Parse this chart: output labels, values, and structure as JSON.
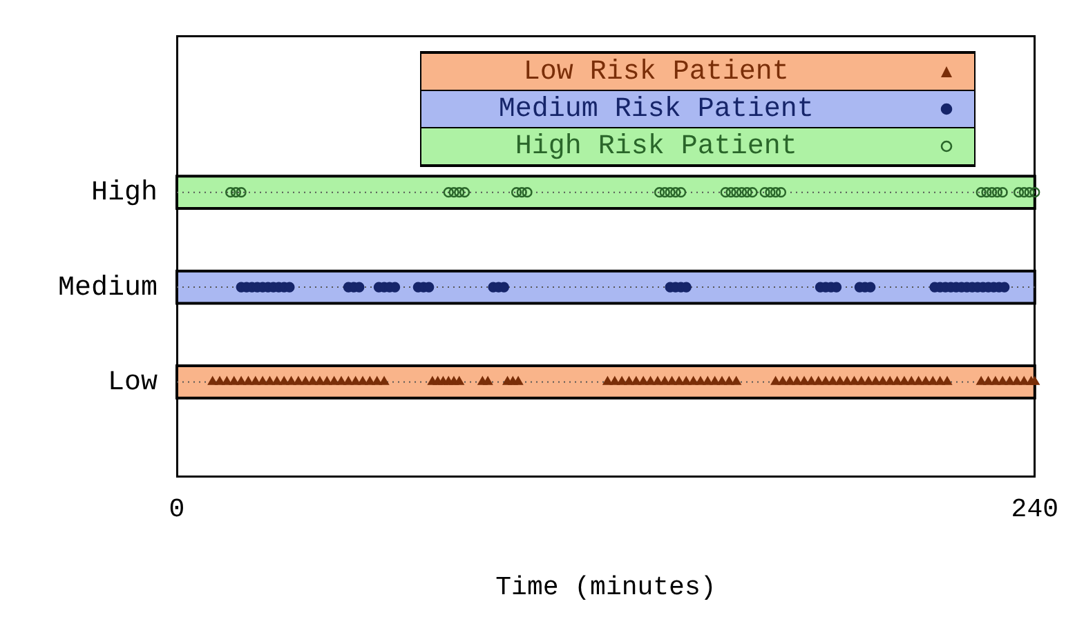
{
  "chart_data": {
    "type": "scatter",
    "orientation": "horizontal",
    "xlabel": "Time (minutes)",
    "xlim": [
      0,
      240
    ],
    "xticks": [
      0,
      240
    ],
    "categories": [
      "High",
      "Medium",
      "Low"
    ],
    "grid": "y",
    "line_style": "dotted",
    "legend": "top",
    "bands": [
      {
        "axis": "y",
        "from": "Low",
        "to": "Low",
        "color": "#f9b48a"
      },
      {
        "axis": "y",
        "from": "Medium",
        "to": "Medium",
        "color": "#aab8f2"
      },
      {
        "axis": "y",
        "from": "High",
        "to": "High",
        "color": "#aef2a4"
      }
    ],
    "series": [
      {
        "name": "Low Risk Patient",
        "color": "#7a2e08",
        "marker": "triangle",
        "values": [
          10,
          12,
          14,
          16,
          18,
          20,
          22,
          24,
          26,
          28,
          30,
          32,
          34,
          36,
          38,
          40,
          42,
          44,
          46,
          48,
          50,
          52,
          54,
          56,
          58,
          71.5,
          73,
          74.5,
          76,
          77.5,
          79,
          85.5,
          87,
          92.5,
          94,
          95.5,
          120.5,
          122.5,
          124.5,
          126.5,
          128.5,
          130.5,
          132.5,
          134.5,
          136.5,
          138.5,
          140.5,
          142.5,
          144.5,
          146.5,
          148.5,
          150.5,
          152.5,
          154.5,
          156.5,
          167.5,
          169.5,
          171.5,
          173.5,
          175.5,
          177.5,
          179.5,
          181.5,
          183.5,
          185.5,
          187.5,
          189.5,
          191.5,
          193.5,
          195.5,
          197.5,
          199.5,
          201.5,
          203.5,
          205.5,
          207.5,
          209.5,
          211.5,
          213.5,
          215.5,
          225,
          227,
          229,
          231,
          233,
          235,
          237,
          239,
          240
        ],
        "x": [
          "Low",
          "Low",
          "Low",
          "Low",
          "Low",
          "Low",
          "Low",
          "Low",
          "Low",
          "Low",
          "Low",
          "Low",
          "Low",
          "Low",
          "Low",
          "Low",
          "Low",
          "Low",
          "Low",
          "Low",
          "Low",
          "Low",
          "Low",
          "Low",
          "Low",
          "Low",
          "Low",
          "Low",
          "Low",
          "Low",
          "Low",
          "Low",
          "Low",
          "Low",
          "Low",
          "Low",
          "Low",
          "Low",
          "Low",
          "Low",
          "Low",
          "Low",
          "Low",
          "Low",
          "Low",
          "Low",
          "Low",
          "Low",
          "Low",
          "Low",
          "Low",
          "Low",
          "Low",
          "Low",
          "Low",
          "Low",
          "Low",
          "Low",
          "Low",
          "Low",
          "Low",
          "Low",
          "Low",
          "Low",
          "Low",
          "Low",
          "Low",
          "Low",
          "Low",
          "Low",
          "Low",
          "Low",
          "Low",
          "Low",
          "Low",
          "Low",
          "Low",
          "Low",
          "Low",
          "Low",
          "Low",
          "Low",
          "Low",
          "Low",
          "Low",
          "Low",
          "Low",
          "Low",
          "Low"
        ]
      },
      {
        "name": "Medium Risk Patient",
        "color": "#16256a",
        "marker": "circle",
        "values": [
          18,
          19.5,
          21,
          22.5,
          24,
          25.5,
          27,
          28.5,
          30,
          31.5,
          48,
          49.5,
          51,
          56.5,
          58,
          59.5,
          61,
          67.5,
          69,
          70.5,
          88.5,
          90,
          91.5,
          138,
          139.5,
          141,
          142.5,
          180,
          181.5,
          183,
          184.5,
          191,
          192.5,
          194,
          212,
          213.5,
          215,
          216.5,
          218,
          219.5,
          221,
          222.5,
          224,
          225.5,
          227,
          228.5,
          230,
          231.5
        ],
        "x": [
          "Medium",
          "Medium",
          "Medium",
          "Medium",
          "Medium",
          "Medium",
          "Medium",
          "Medium",
          "Medium",
          "Medium",
          "Medium",
          "Medium",
          "Medium",
          "Medium",
          "Medium",
          "Medium",
          "Medium",
          "Medium",
          "Medium",
          "Medium",
          "Medium",
          "Medium",
          "Medium",
          "Medium",
          "Medium",
          "Medium",
          "Medium",
          "Medium",
          "Medium",
          "Medium",
          "Medium",
          "Medium",
          "Medium",
          "Medium",
          "Medium",
          "Medium",
          "Medium",
          "Medium",
          "Medium",
          "Medium",
          "Medium",
          "Medium",
          "Medium",
          "Medium",
          "Medium",
          "Medium",
          "Medium",
          "Medium"
        ]
      },
      {
        "name": "High Risk Patient",
        "color": "#2a662a",
        "marker": "circle-open",
        "values": [
          15,
          16.5,
          18,
          76,
          77.5,
          79,
          80.5,
          95,
          96.5,
          98,
          135,
          136.5,
          138,
          139.5,
          141,
          153.5,
          155,
          156.5,
          158,
          159.5,
          161,
          164.5,
          166,
          167.5,
          169,
          225,
          226.5,
          228,
          229.5,
          231,
          235.5,
          237,
          238.5,
          240
        ],
        "x": [
          "High",
          "High",
          "High",
          "High",
          "High",
          "High",
          "High",
          "High",
          "High",
          "High",
          "High",
          "High",
          "High",
          "High",
          "High",
          "High",
          "High",
          "High",
          "High",
          "High",
          "High",
          "High",
          "High",
          "High",
          "High",
          "High",
          "High",
          "High",
          "High",
          "High",
          "High",
          "High",
          "High",
          "High"
        ]
      }
    ]
  }
}
